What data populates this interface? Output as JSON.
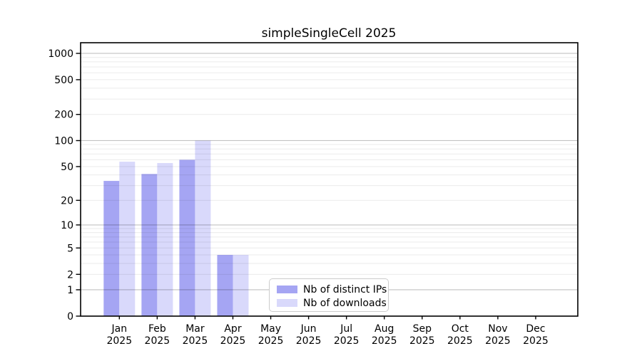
{
  "chart_data": {
    "type": "bar",
    "title": "simpleSingleCell 2025",
    "categories": [
      "Jan",
      "Feb",
      "Mar",
      "Apr",
      "May",
      "Jun",
      "Jul",
      "Aug",
      "Sep",
      "Oct",
      "Nov",
      "Dec"
    ],
    "x_year_label": "2025",
    "series": [
      {
        "name": "Nb of distinct IPs",
        "color": "#a5a5f3",
        "values": [
          34,
          41,
          60,
          4,
          0,
          0,
          0,
          0,
          0,
          0,
          0,
          0
        ]
      },
      {
        "name": "Nb of downloads",
        "color": "#d9d9fb",
        "values": [
          57,
          55,
          100,
          4,
          0,
          0,
          0,
          0,
          0,
          0,
          0,
          0
        ]
      }
    ],
    "y_scale": "log1p",
    "y_ticks": [
      0,
      1,
      2,
      5,
      10,
      20,
      50,
      100,
      200,
      500,
      1000
    ],
    "ylim": [
      0,
      1400
    ],
    "xlabel": "",
    "ylabel": "",
    "grid": "on",
    "legend_position": "lower center",
    "colors": {
      "axis": "#000000",
      "major_grid": "rgba(0,0,0,0.24)",
      "minor_grid": "rgba(0,0,0,0.08)",
      "text": "#000000",
      "background": "#ffffff",
      "legend_border": "#cccccc"
    }
  }
}
